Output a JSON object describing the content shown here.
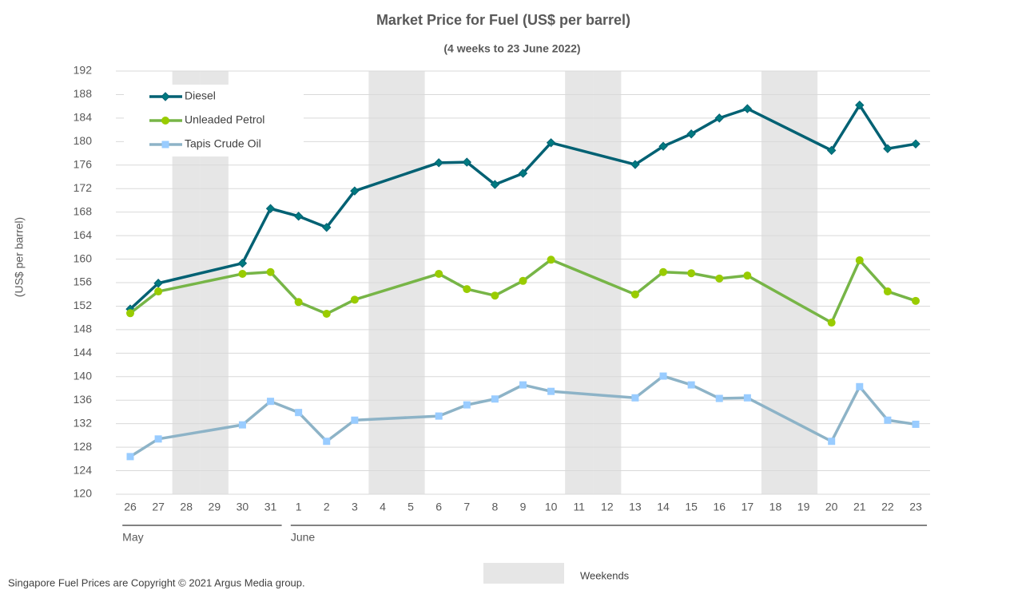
{
  "chart_data": {
    "type": "line",
    "title": "Market Price for Fuel (US$ per barrel)",
    "subtitle": "(4 weeks to 23 June 2022)",
    "y_label": "(US$ per barrel)",
    "categories": [
      "26",
      "27",
      "28",
      "29",
      "30",
      "31",
      "1",
      "2",
      "3",
      "4",
      "5",
      "6",
      "7",
      "8",
      "9",
      "10",
      "11",
      "12",
      "13",
      "14",
      "15",
      "16",
      "17",
      "18",
      "19",
      "20",
      "21",
      "22",
      "23"
    ],
    "months": [
      "May",
      "June"
    ],
    "series": [
      {
        "name": "Diesel",
        "color": "#006173",
        "marker": "diamond",
        "marker_color": "#007a80",
        "values": [
          151.5,
          155.9,
          null,
          null,
          159.3,
          168.6,
          167.3,
          165.4,
          171.6,
          null,
          null,
          176.4,
          176.5,
          172.7,
          174.6,
          179.8,
          null,
          null,
          176.1,
          179.2,
          181.3,
          184.0,
          185.6,
          null,
          null,
          178.5,
          186.2,
          178.8,
          179.6
        ]
      },
      {
        "name": "Unleaded Petrol",
        "color": "#77b547",
        "marker": "circle",
        "marker_color": "#99cc00",
        "values": [
          150.8,
          154.5,
          null,
          null,
          157.5,
          157.8,
          152.7,
          150.7,
          153.1,
          null,
          null,
          157.5,
          154.9,
          153.8,
          156.3,
          159.9,
          null,
          null,
          154.0,
          157.8,
          157.6,
          156.7,
          157.2,
          null,
          null,
          149.2,
          159.8,
          154.5,
          152.9
        ]
      },
      {
        "name": "Tapis Crude Oil",
        "color": "#8db3c7",
        "marker": "square",
        "marker_color": "#99ccff",
        "values": [
          126.4,
          129.4,
          null,
          null,
          131.8,
          135.8,
          133.9,
          129.0,
          132.6,
          null,
          null,
          133.3,
          135.2,
          136.2,
          138.6,
          137.5,
          null,
          null,
          136.4,
          140.1,
          138.6,
          136.3,
          136.4,
          null,
          null,
          129.0,
          138.3,
          132.6,
          131.9
        ]
      }
    ],
    "span_gaps": true,
    "shade_label": "Weekends",
    "shade_color": "#e6e6e6",
    "ylim": [
      120,
      192
    ],
    "yticks": [
      120,
      124,
      128,
      132,
      136,
      140,
      144,
      148,
      152,
      156,
      160,
      164,
      168,
      172,
      176,
      180,
      184,
      188,
      192
    ],
    "grid": true,
    "footnote": "Singapore Fuel Prices are Copyright © 2021 Argus Media group."
  }
}
